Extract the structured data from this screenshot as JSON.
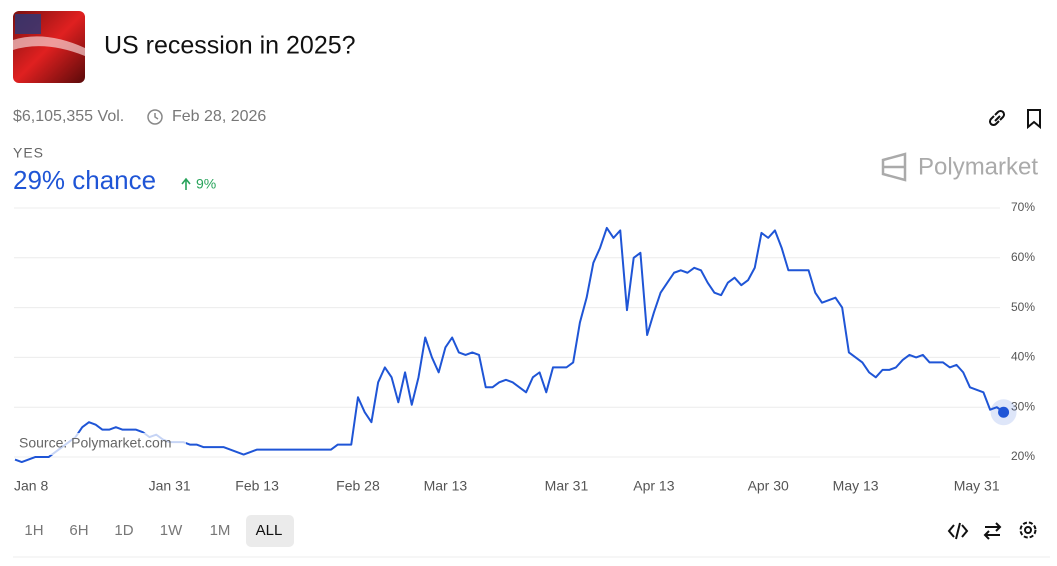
{
  "header": {
    "title": "US recession in 2025?",
    "volume": "$6,105,355 Vol.",
    "end_date": "Feb 28, 2026",
    "outcome": "YES",
    "chance": "29% chance",
    "change": "9%",
    "brand": "Polymarket"
  },
  "chart_data": {
    "type": "line",
    "source": "Source: Polymarket.com",
    "color": "#1f55d6",
    "grid": true,
    "categories": [
      "Jan 8",
      null,
      null,
      null,
      null,
      null,
      null,
      null,
      null,
      null,
      null,
      null,
      null,
      null,
      null,
      null,
      null,
      null,
      null,
      null,
      null,
      null,
      null,
      "Jan 31",
      null,
      null,
      null,
      null,
      null,
      null,
      null,
      null,
      null,
      null,
      null,
      null,
      "Feb 13",
      null,
      null,
      null,
      null,
      null,
      null,
      null,
      null,
      null,
      null,
      null,
      null,
      null,
      null,
      "Feb 28",
      null,
      null,
      null,
      null,
      null,
      null,
      null,
      null,
      null,
      null,
      null,
      null,
      "Mar 13",
      null,
      null,
      null,
      null,
      null,
      null,
      null,
      null,
      null,
      null,
      null,
      null,
      null,
      null,
      null,
      null,
      null,
      "Mar 31",
      null,
      null,
      null,
      null,
      null,
      null,
      null,
      null,
      null,
      null,
      null,
      null,
      "Apr 13",
      null,
      null,
      null,
      null,
      null,
      null,
      null,
      null,
      null,
      null,
      null,
      null,
      null,
      null,
      null,
      null,
      "Apr 30",
      null,
      null,
      null,
      null,
      null,
      null,
      null,
      null,
      null,
      null,
      null,
      null,
      "May 13",
      null,
      null,
      null,
      null,
      null,
      null,
      null,
      null,
      null,
      null,
      null,
      null,
      null,
      null,
      null,
      null,
      null,
      "May 31",
      null,
      null,
      null,
      null
    ],
    "values": [
      19.5,
      19,
      19.5,
      20,
      20,
      20,
      21,
      22,
      23,
      24,
      26,
      27,
      26.5,
      25.5,
      25.5,
      26,
      25.5,
      25.5,
      25.5,
      25,
      24,
      24.5,
      23.5,
      23,
      23,
      23,
      22.5,
      22.5,
      22,
      22,
      22,
      22,
      21.5,
      21,
      20.5,
      21,
      21.5,
      21.5,
      21.5,
      21.5,
      21.5,
      21.5,
      21.5,
      21.5,
      21.5,
      21.5,
      21.5,
      21.5,
      22.5,
      22.5,
      22.5,
      32,
      29,
      27,
      35,
      38,
      36,
      31,
      37,
      30.5,
      36,
      44,
      40,
      37,
      42,
      44,
      41,
      40.5,
      41,
      40.5,
      34,
      34,
      35,
      35.5,
      35,
      34,
      33,
      36,
      37,
      33,
      38,
      38,
      38,
      39,
      47,
      52,
      59,
      62,
      66,
      64,
      65.5,
      49.5,
      60,
      61,
      44.5,
      49,
      53,
      55,
      57,
      57.5,
      57,
      58,
      57.5,
      55,
      53,
      52.5,
      55,
      56,
      54.5,
      55.5,
      58,
      65,
      64,
      65.5,
      62,
      57.5,
      57.5,
      57.5,
      57.5,
      53,
      51,
      51.5,
      52,
      50,
      41,
      40,
      39,
      37,
      36,
      37.5,
      37.5,
      38,
      39.5,
      40.5,
      40,
      40.5,
      39,
      39,
      39,
      38,
      38.5,
      37,
      34,
      33.5,
      33,
      29.5,
      30,
      29
    ],
    "ylim": [
      18,
      70
    ],
    "yticks": [
      {
        "value": 20,
        "label": "20%"
      },
      {
        "value": 30,
        "label": "30%"
      },
      {
        "value": 40,
        "label": "40%"
      },
      {
        "value": 50,
        "label": "50%"
      },
      {
        "value": 60,
        "label": "60%"
      },
      {
        "value": 70,
        "label": "70%"
      }
    ]
  },
  "timeframes": [
    "1H",
    "6H",
    "1D",
    "1W",
    "1M",
    "ALL"
  ],
  "selected_timeframe": "ALL"
}
